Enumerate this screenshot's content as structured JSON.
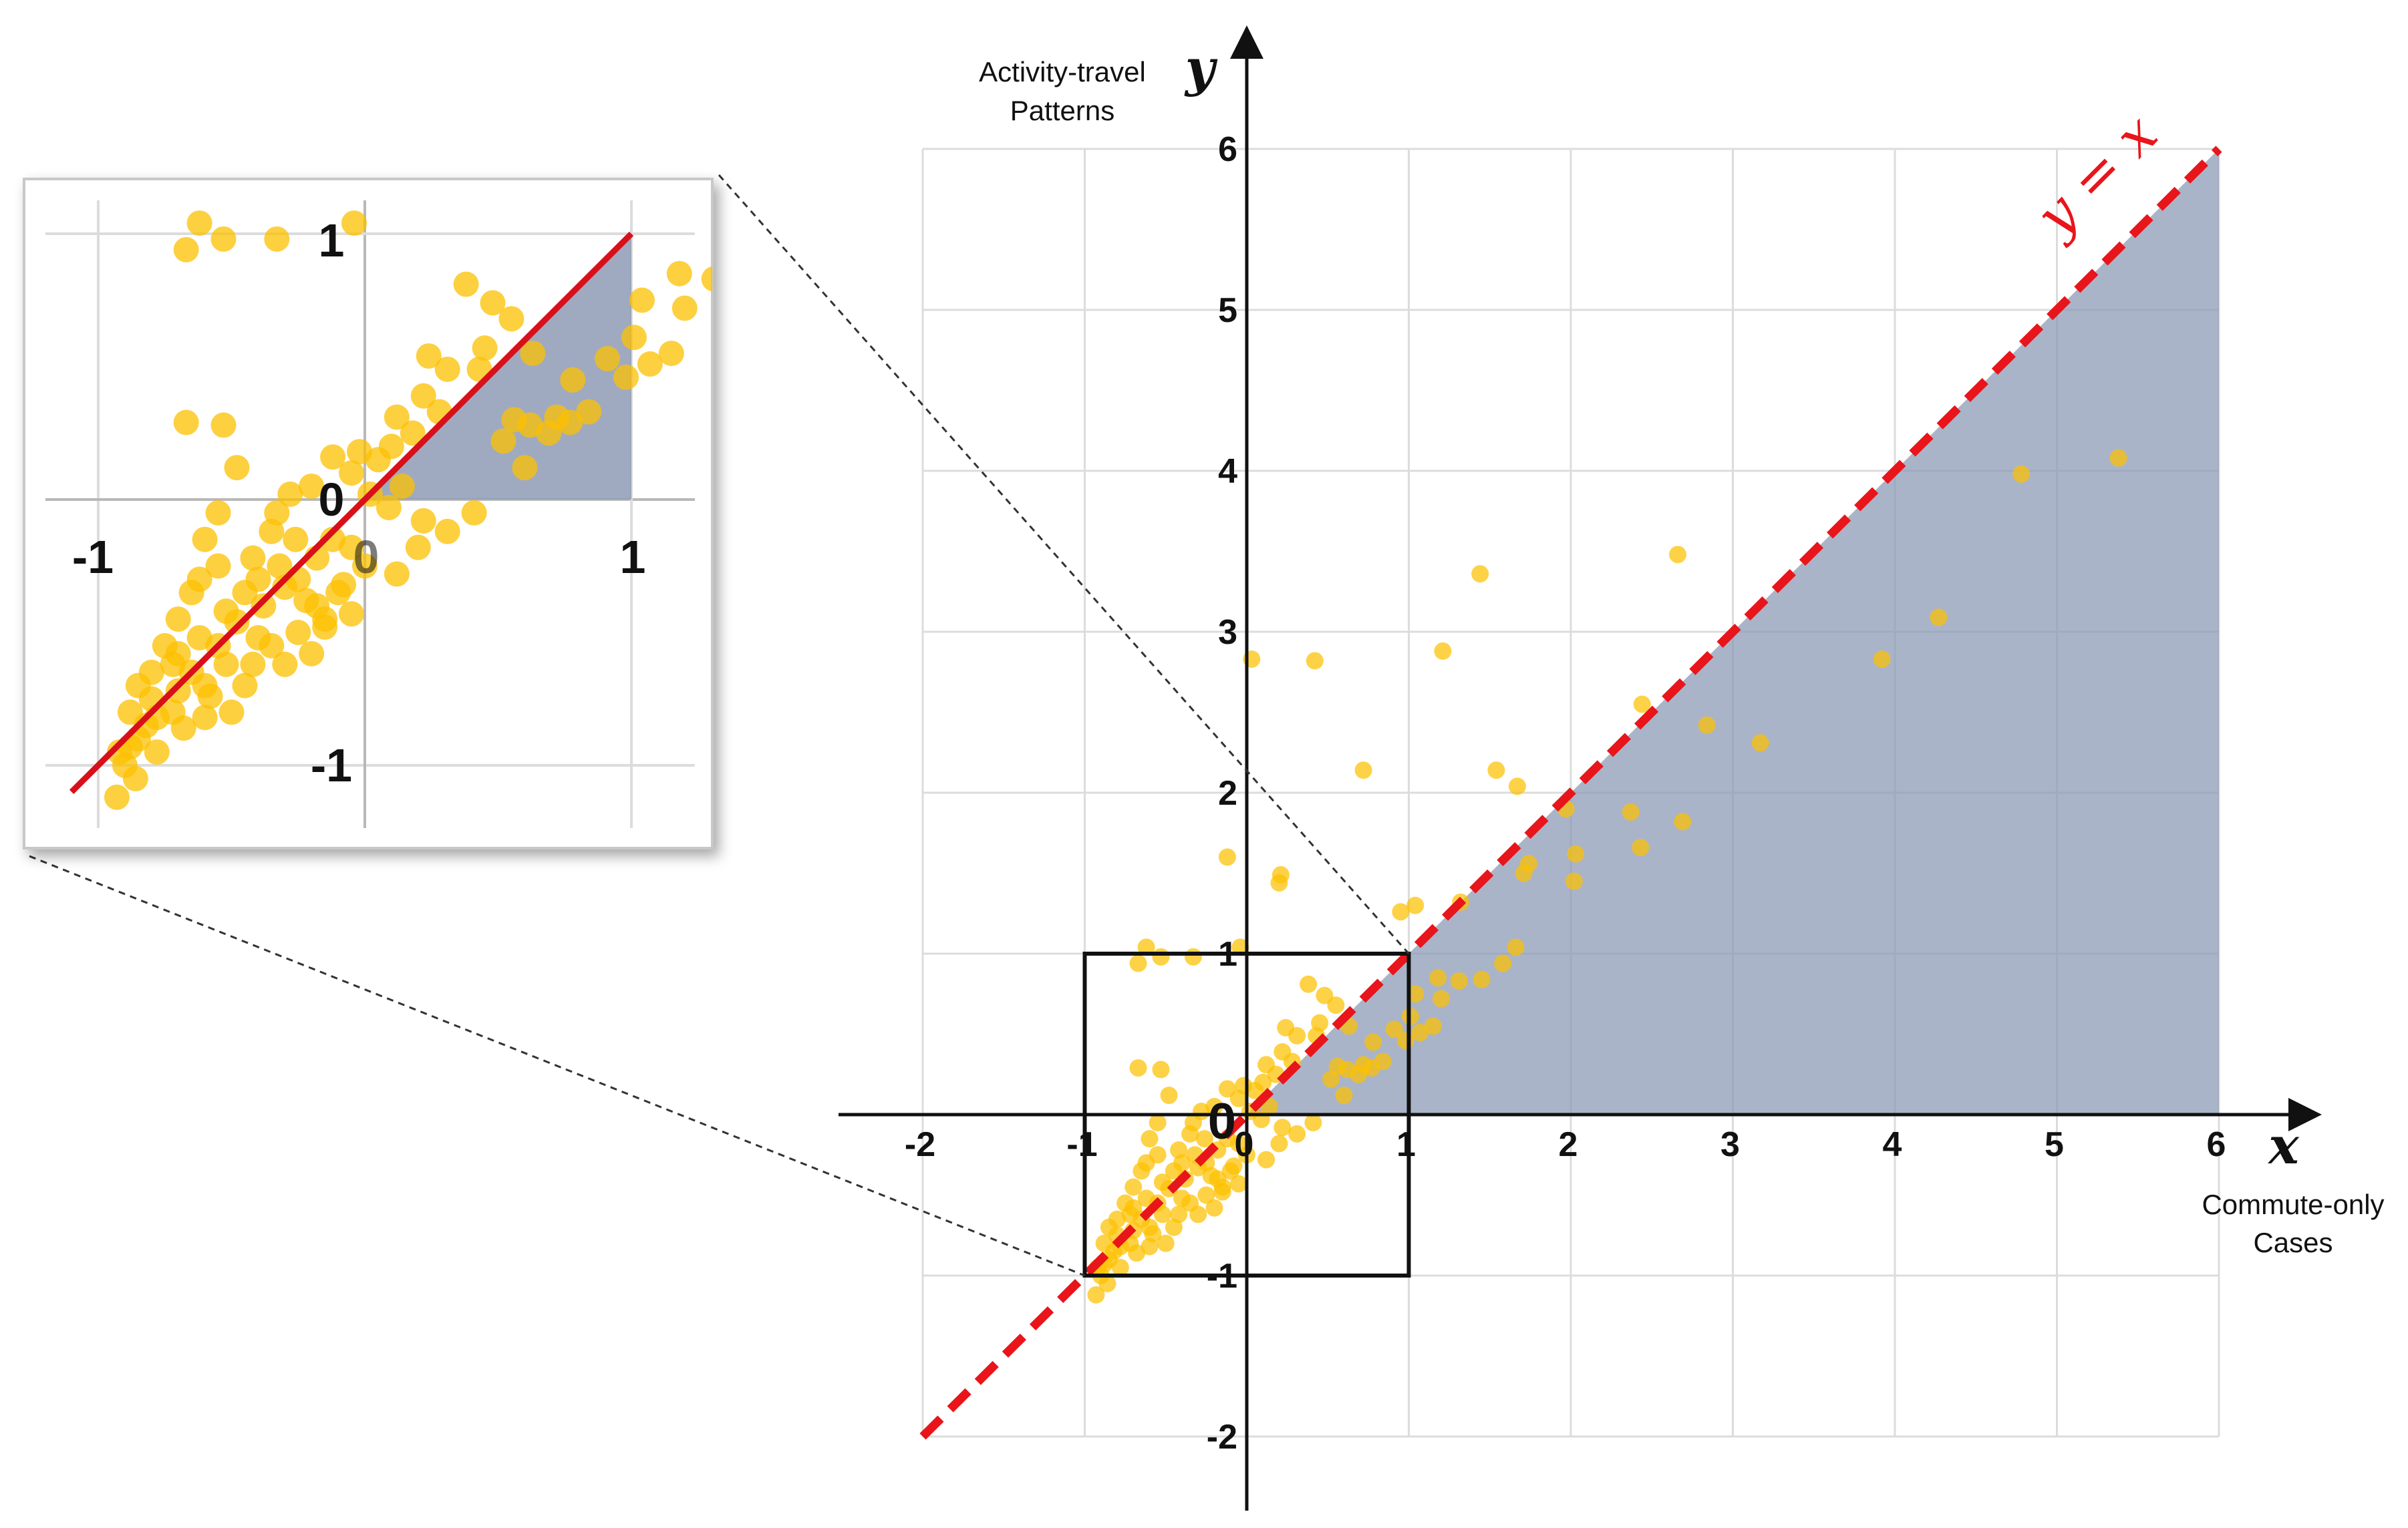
{
  "chart_data": {
    "type": "scatter",
    "xlim": [
      -2,
      6
    ],
    "ylim": [
      -2,
      6
    ],
    "xticks": [
      "-2",
      "-1",
      "0",
      "1",
      "2",
      "3",
      "4",
      "5",
      "6"
    ],
    "yticks": [
      "-2",
      "-1",
      "0",
      "1",
      "2",
      "3",
      "4",
      "5",
      "6"
    ],
    "xlabel": "Commute-only Cases",
    "ylabel": "Activity-travel Patterns",
    "x_var": "x",
    "y_var": "y",
    "reference_line_label": "y = x",
    "grid": true,
    "shaded_region": "between y = x and y = 0, for 0 ≤ x ≤ 6",
    "zoom_box": [
      -1,
      1,
      -1,
      1
    ],
    "inset_xticks": [
      "-1",
      "0",
      "1"
    ],
    "inset_yticks": [
      "-1",
      "0",
      "1"
    ],
    "colors": {
      "points": "#fcc000",
      "line": "#e8151b",
      "shade": "#8e9bb6",
      "grid": "#dcdcdc"
    },
    "points": [
      [
        5.38,
        4.08
      ],
      [
        4.78,
        3.98
      ],
      [
        4.27,
        3.09
      ],
      [
        3.92,
        2.83
      ],
      [
        3.17,
        2.31
      ],
      [
        2.84,
        2.42
      ],
      [
        2.66,
        3.48
      ],
      [
        2.69,
        1.82
      ],
      [
        2.44,
        2.55
      ],
      [
        2.43,
        1.66
      ],
      [
        2.37,
        1.88
      ],
      [
        2.03,
        1.62
      ],
      [
        2.02,
        1.45
      ],
      [
        1.97,
        1.9
      ],
      [
        1.74,
        1.56
      ],
      [
        1.71,
        1.5
      ],
      [
        1.67,
        2.04
      ],
      [
        1.54,
        2.14
      ],
      [
        1.66,
        1.04
      ],
      [
        1.58,
        0.94
      ],
      [
        1.44,
        3.36
      ],
      [
        1.21,
        2.88
      ],
      [
        1.45,
        0.84
      ],
      [
        1.32,
        1.32
      ],
      [
        1.31,
        0.83
      ],
      [
        1.2,
        0.72
      ],
      [
        1.18,
        0.85
      ],
      [
        1.04,
        1.3
      ],
      [
        0.95,
        1.26
      ],
      [
        1.04,
        0.75
      ],
      [
        0.72,
        2.14
      ],
      [
        0.42,
        2.82
      ],
      [
        0.03,
        2.83
      ],
      [
        -0.12,
        1.6
      ],
      [
        0.21,
        1.49
      ],
      [
        0.2,
        1.44
      ],
      [
        -0.04,
        1.04
      ],
      [
        -0.33,
        0.98
      ],
      [
        -0.53,
        0.98
      ],
      [
        -0.62,
        1.04
      ],
      [
        -0.67,
        0.94
      ],
      [
        -0.53,
        0.28
      ],
      [
        -0.67,
        0.29
      ],
      [
        0.12,
        0.31
      ],
      [
        0.22,
        0.39
      ],
      [
        0.43,
        0.49
      ],
      [
        0.63,
        0.55
      ],
      [
        0.78,
        0.45
      ],
      [
        0.77,
        0.29
      ],
      [
        0.62,
        0.28
      ],
      [
        0.69,
        0.25
      ],
      [
        0.84,
        0.33
      ],
      [
        0.91,
        0.53
      ],
      [
        0.98,
        0.46
      ],
      [
        1.01,
        0.61
      ],
      [
        1.07,
        0.51
      ],
      [
        1.15,
        0.55
      ],
      [
        0.72,
        0.31
      ],
      [
        0.6,
        0.12
      ],
      [
        0.52,
        0.22
      ],
      [
        0.56,
        0.3
      ],
      [
        0.38,
        0.81
      ],
      [
        0.55,
        0.68
      ],
      [
        0.48,
        0.74
      ],
      [
        0.45,
        0.57
      ],
      [
        0.24,
        0.54
      ],
      [
        0.31,
        0.49
      ],
      [
        0.28,
        0.33
      ],
      [
        0.18,
        0.25
      ],
      [
        0.1,
        0.2
      ],
      [
        0.05,
        0.15
      ],
      [
        0.14,
        0.05
      ],
      [
        0.09,
        -0.03
      ],
      [
        0.22,
        -0.08
      ],
      [
        0.31,
        -0.12
      ],
      [
        0.41,
        -0.05
      ],
      [
        0.2,
        -0.18
      ],
      [
        0.12,
        -0.28
      ],
      [
        0.02,
        0.02
      ],
      [
        -0.05,
        0.1
      ],
      [
        -0.12,
        0.16
      ],
      [
        -0.2,
        0.05
      ],
      [
        -0.28,
        0.02
      ],
      [
        -0.33,
        -0.05
      ],
      [
        -0.26,
        -0.15
      ],
      [
        -0.18,
        -0.22
      ],
      [
        -0.1,
        -0.35
      ],
      [
        -0.05,
        -0.43
      ],
      [
        -0.15,
        -0.45
      ],
      [
        -0.22,
        -0.38
      ],
      [
        -0.3,
        -0.33
      ],
      [
        -0.38,
        -0.4
      ],
      [
        -0.4,
        -0.52
      ],
      [
        -0.48,
        -0.46
      ],
      [
        -0.55,
        -0.55
      ],
      [
        -0.52,
        -0.62
      ],
      [
        -0.6,
        -0.7
      ],
      [
        -0.65,
        -0.65
      ],
      [
        -0.7,
        -0.72
      ],
      [
        -0.72,
        -0.8
      ],
      [
        -0.78,
        -0.82
      ],
      [
        -0.82,
        -0.85
      ],
      [
        -0.85,
        -0.9
      ],
      [
        -0.88,
        -0.93
      ],
      [
        -0.9,
        -1.0
      ],
      [
        -0.86,
        -1.05
      ],
      [
        -0.93,
        -1.12
      ],
      [
        -0.78,
        -0.95
      ],
      [
        -0.68,
        -0.86
      ],
      [
        -0.6,
        -0.82
      ],
      [
        -0.58,
        -0.74
      ],
      [
        -0.45,
        -0.7
      ],
      [
        -0.5,
        -0.8
      ],
      [
        -0.42,
        -0.62
      ],
      [
        -0.35,
        -0.55
      ],
      [
        -0.3,
        -0.62
      ],
      [
        -0.25,
        -0.5
      ],
      [
        -0.2,
        -0.58
      ],
      [
        -0.15,
        -0.48
      ],
      [
        -0.08,
        -0.32
      ],
      [
        -0.32,
        -0.25
      ],
      [
        -0.4,
        -0.3
      ],
      [
        -0.45,
        -0.35
      ],
      [
        -0.48,
        0.12
      ],
      [
        -0.55,
        -0.05
      ],
      [
        -0.6,
        -0.15
      ],
      [
        -0.65,
        -0.35
      ],
      [
        -0.7,
        -0.45
      ],
      [
        -0.75,
        -0.55
      ],
      [
        -0.8,
        -0.65
      ],
      [
        -0.85,
        -0.7
      ],
      [
        -0.72,
        -0.62
      ],
      [
        -0.62,
        -0.52
      ],
      [
        -0.52,
        -0.42
      ],
      [
        -0.42,
        -0.22
      ],
      [
        -0.35,
        -0.12
      ],
      [
        -0.25,
        -0.3
      ],
      [
        -0.18,
        -0.4
      ],
      [
        -0.12,
        -0.15
      ],
      [
        -0.05,
        -0.18
      ],
      [
        0.0,
        -0.25
      ],
      [
        -0.02,
        0.18
      ],
      [
        -0.55,
        -0.25
      ],
      [
        -0.62,
        -0.3
      ],
      [
        -0.7,
        -0.58
      ],
      [
        -0.8,
        -0.75
      ],
      [
        -0.92,
        -0.95
      ],
      [
        -0.88,
        -0.8
      ]
    ]
  }
}
